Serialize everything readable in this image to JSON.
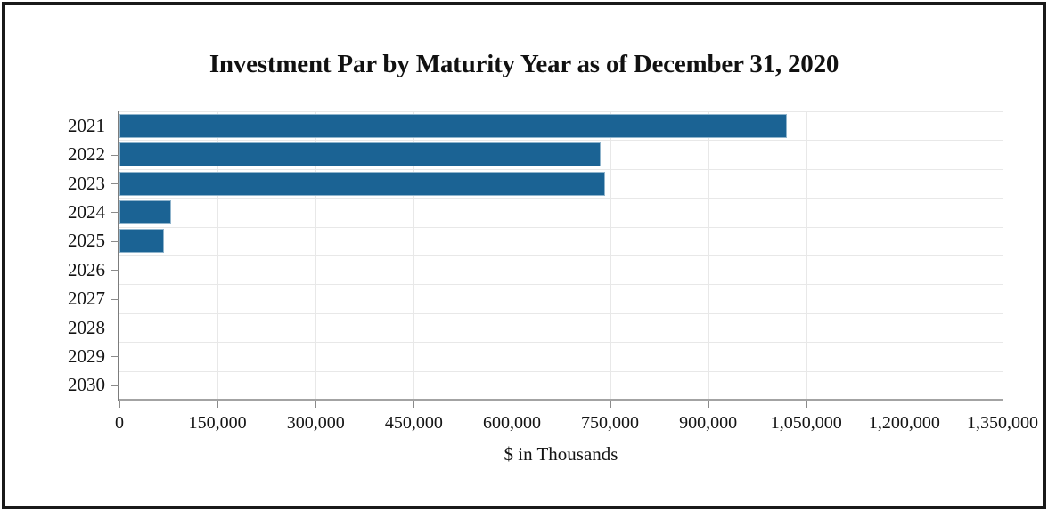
{
  "frame": {
    "background": "#ffffff",
    "border_color": "#191919"
  },
  "chart_data": {
    "type": "bar",
    "orientation": "horizontal",
    "title": "Investment Par by Maturity Year as of December 31, 2020",
    "xlabel": "$ in Thousands",
    "ylabel": "",
    "categories": [
      "2021",
      "2022",
      "2023",
      "2024",
      "2025",
      "2026",
      "2027",
      "2028",
      "2029",
      "2030"
    ],
    "values": [
      1020000,
      735000,
      743000,
      79000,
      68000,
      0,
      0,
      0,
      0,
      0
    ],
    "xlim": [
      0,
      1350000
    ],
    "x_ticks": [
      0,
      150000,
      300000,
      450000,
      600000,
      750000,
      900000,
      1050000,
      1200000,
      1350000
    ],
    "x_tick_labels": [
      "0",
      "150,000",
      "300,000",
      "450,000",
      "600,000",
      "750,000",
      "900,000",
      "1,050,000",
      "1,200,000",
      "1,350,000"
    ],
    "grid": true,
    "legend": "none",
    "bar_color": "#1B6394",
    "bar_border_color": "#8FB4CC",
    "gridline_color": "#E8E8E8",
    "axis_color": "#A3A3A3",
    "tick_color": "#8A8A8A",
    "text_color": "#141414"
  }
}
